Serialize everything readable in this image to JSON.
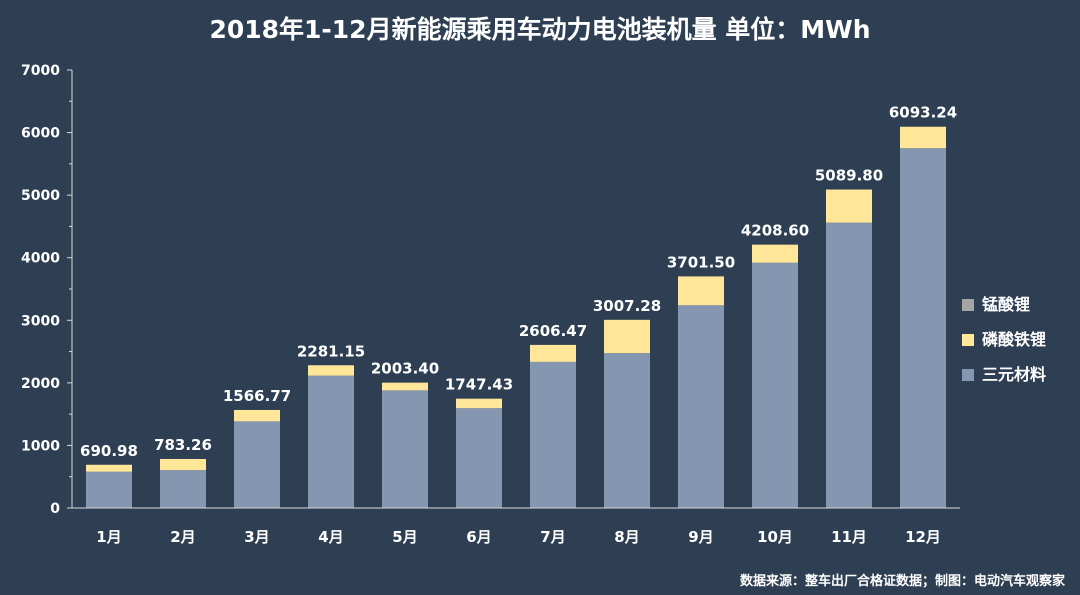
{
  "chart_data": {
    "type": "bar",
    "stacked": true,
    "title": "2018年1-12月新能源乘用车动力电池装机量 单位：MWh",
    "categories": [
      "1月",
      "2月",
      "3月",
      "4月",
      "5月",
      "6月",
      "7月",
      "8月",
      "9月",
      "10月",
      "11月",
      "12月"
    ],
    "totals": [
      "690.98",
      "783.26",
      "1566.77",
      "2281.15",
      "2003.40",
      "1747.43",
      "2606.47",
      "3007.28",
      "3701.50",
      "4208.60",
      "5089.80",
      "6093.24"
    ],
    "series": [
      {
        "name": "三元材料",
        "color": "#8496b0",
        "values": [
          580,
          605,
          1385,
          2115,
          1880,
          1595,
          2335,
          2475,
          3240,
          3920,
          4560,
          5750
        ]
      },
      {
        "name": "磷酸铁锂",
        "color": "#ffe699",
        "values": [
          110.98,
          178.26,
          181.77,
          166.15,
          123.4,
          152.43,
          271.47,
          532.28,
          461.5,
          288.6,
          529.8,
          343.24
        ]
      },
      {
        "name": "锰酸锂",
        "color": "#a5a5a5",
        "values": [
          0,
          0,
          0,
          0,
          0,
          0,
          0,
          0,
          0,
          0,
          0,
          0
        ]
      }
    ],
    "yticks": [
      "0",
      "1000",
      "2000",
      "3000",
      "4000",
      "5000",
      "6000",
      "7000"
    ],
    "ylim": [
      0,
      7000
    ],
    "legend": "right",
    "grid": false
  },
  "source_note": "数据来源：整车出厂合格证数据；制图：电动汽车观察家"
}
